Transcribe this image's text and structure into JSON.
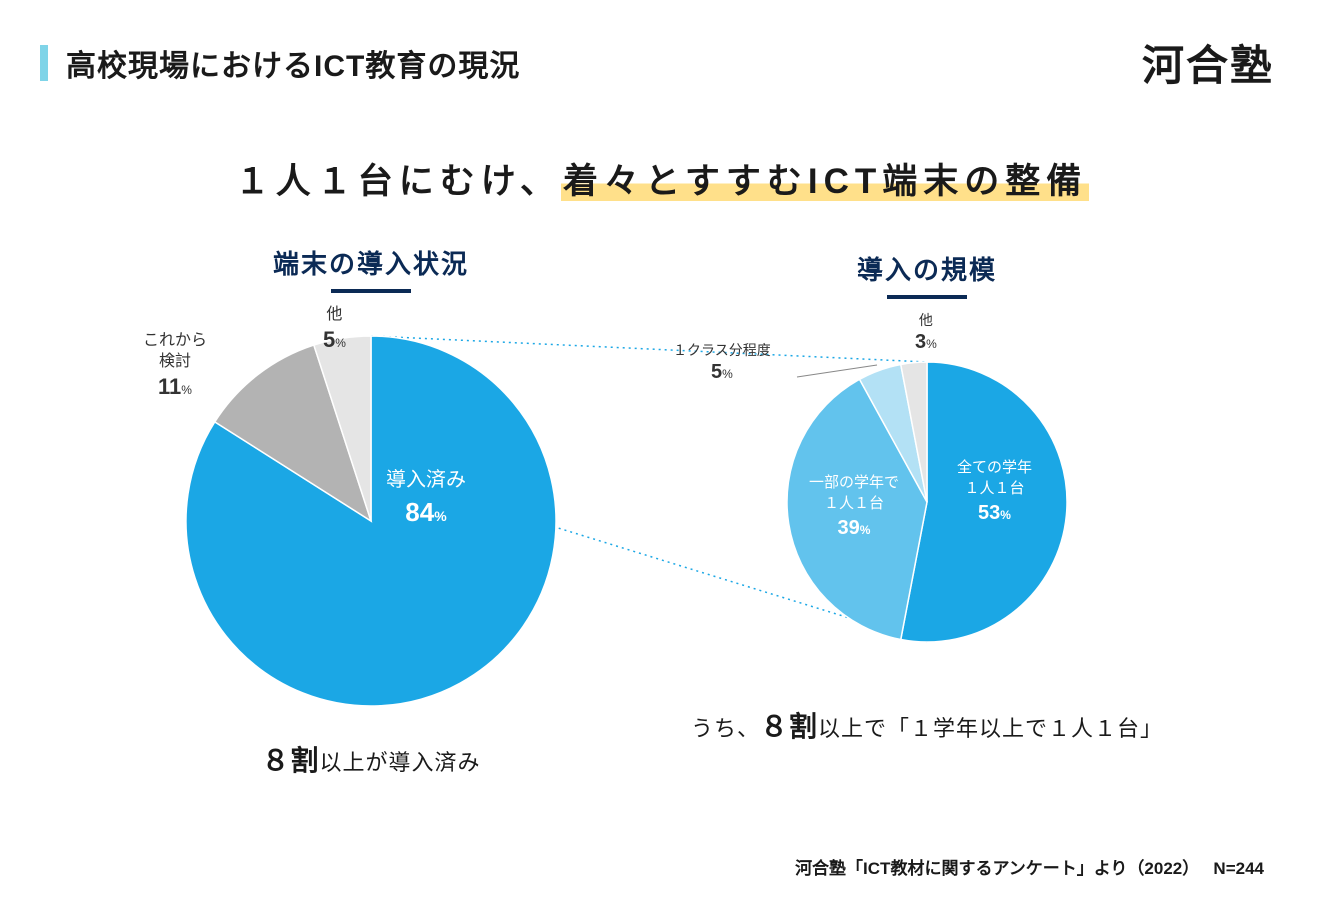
{
  "header": {
    "title": "高校現場におけるICT教育の現況",
    "brand": "河合塾",
    "accent_color": "#7fd4e8"
  },
  "main_heading": {
    "prefix": "１人１台にむけ、",
    "highlight": "着々とすすむICT端末の整備",
    "highlight_color": "#ffe08a"
  },
  "chart1": {
    "type": "pie",
    "title": "端末の導入状況",
    "title_color": "#0b2a55",
    "radius": 185,
    "background_color": "#ffffff",
    "slices": [
      {
        "label": "導入済み",
        "value": 84,
        "color": "#1ba7e5",
        "label_inside": true
      },
      {
        "label": "これから検討",
        "short_label_top": "これから",
        "short_label_bottom": "検討",
        "value": 11,
        "color": "#b3b3b3",
        "label_inside": false
      },
      {
        "label": "他",
        "value": 5,
        "color": "#e5e5e5",
        "label_inside": false
      }
    ],
    "caption_em": "８割",
    "caption_rest": "以上が導入済み"
  },
  "chart2": {
    "type": "pie",
    "title": "導入の規模",
    "title_color": "#0b2a55",
    "radius": 140,
    "background_color": "#ffffff",
    "slices": [
      {
        "label_line1": "全ての学年",
        "label_line2": "１人１台",
        "value": 53,
        "color": "#1ba7e5",
        "label_inside": true
      },
      {
        "label_line1": "一部の学年で",
        "label_line2": "１人１台",
        "value": 39,
        "color": "#62c3ed",
        "label_inside": true
      },
      {
        "label": "１クラス分程度",
        "value": 5,
        "color": "#b3e1f5",
        "label_inside": false
      },
      {
        "label": "他",
        "value": 3,
        "color": "#e5e5e5",
        "label_inside": false
      }
    ],
    "caption_prefix": "うち、",
    "caption_em": "８割",
    "caption_rest": "以上で「１学年以上で１人１台」"
  },
  "connector": {
    "line_color": "#1ba7e5",
    "dash": "2 4"
  },
  "source": {
    "text": "河合塾「ICT教材に関するアンケート」より（2022）",
    "n_label": "N=244"
  }
}
